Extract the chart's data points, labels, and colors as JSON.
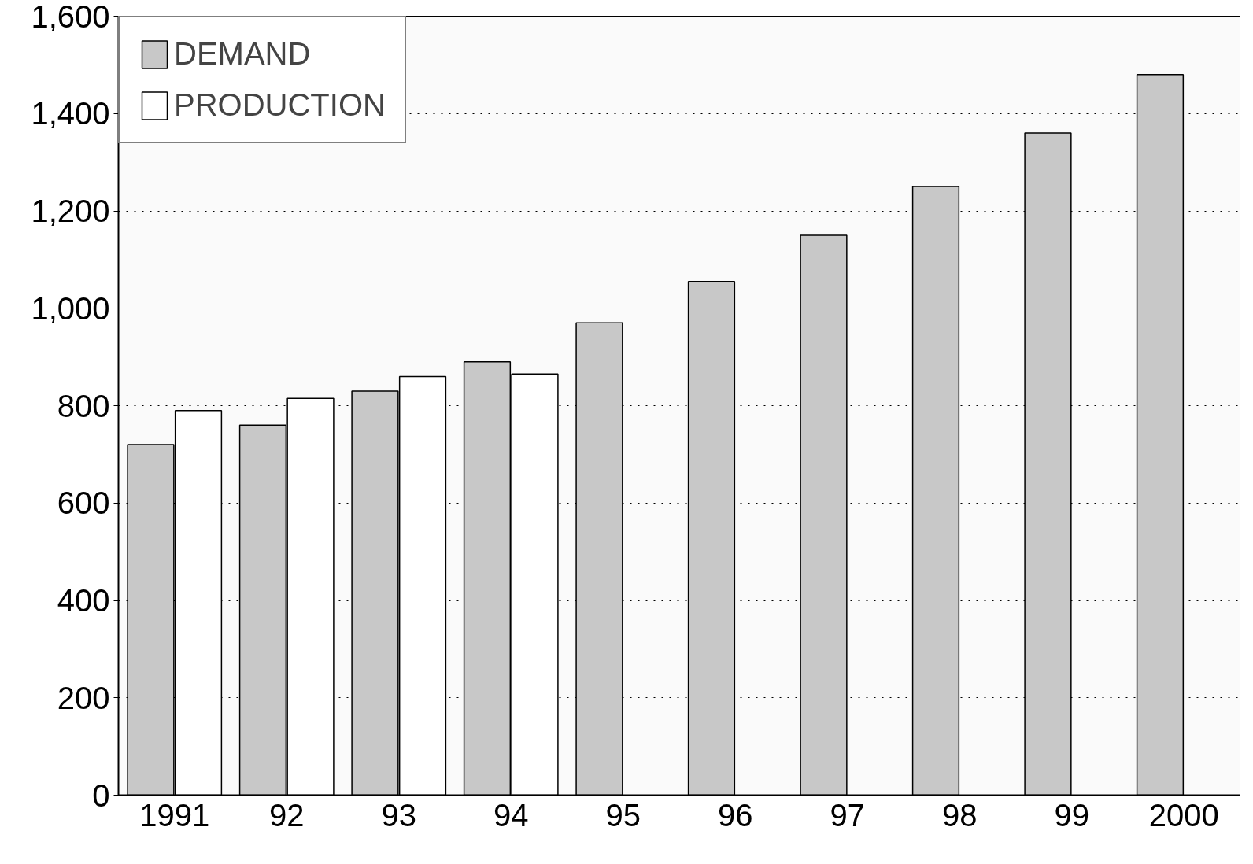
{
  "chart_data": {
    "type": "bar",
    "categories": [
      "1991",
      "92",
      "93",
      "94",
      "95",
      "96",
      "97",
      "98",
      "99",
      "2000"
    ],
    "series": [
      {
        "name": "DEMAND",
        "color": "#c8c8c8",
        "values": [
          720,
          760,
          830,
          890,
          970,
          1055,
          1150,
          1250,
          1360,
          1480
        ]
      },
      {
        "name": "PRODUCTION",
        "color": "#ffffff",
        "values": [
          790,
          815,
          860,
          865,
          null,
          null,
          null,
          null,
          null,
          null
        ]
      }
    ],
    "ylim": [
      0,
      1600
    ],
    "yticks": [
      0,
      200,
      400,
      600,
      800,
      {
        "value": 1000,
        "label": "1,000"
      },
      {
        "value": 1200,
        "label": "1,200"
      },
      {
        "value": 1400,
        "label": "1,400"
      },
      {
        "value": 1600,
        "label": "1,600"
      }
    ],
    "grid": "y",
    "legend": "top left"
  }
}
